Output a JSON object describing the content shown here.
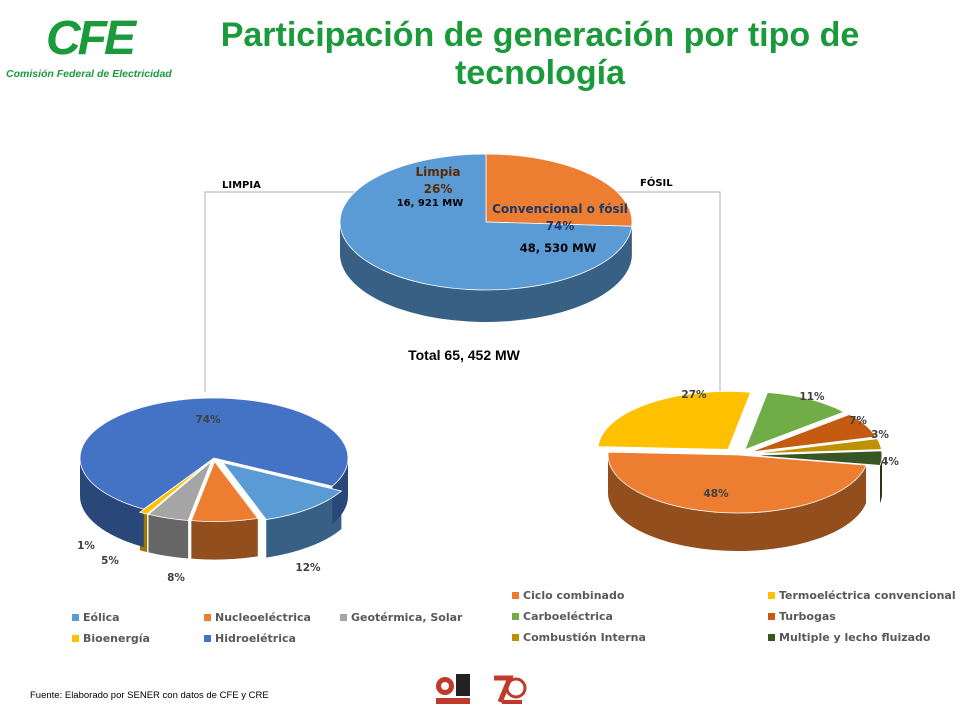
{
  "header": {
    "logo_text": "CFE",
    "logo_subtitle": "Comisión Federal de Electricidad",
    "title": "Participación de generación por tipo de tecnología"
  },
  "labels": {
    "left_branch": "LIMPIA",
    "right_branch": "FÓSIL",
    "total": "Total 65, 452 MW",
    "source": "Fuente: Elaborado por SENER con datos de CFE y CRE"
  },
  "colors": {
    "brand_green": "#1a9a3a"
  },
  "chart_data": [
    {
      "type": "pie",
      "categories": [
        "Limpia",
        "Convencional o fósil"
      ],
      "values": [
        26,
        74
      ],
      "unit": "%",
      "mw": [
        "16, 921 MW",
        "48, 530 MW"
      ],
      "colors": [
        "#ED7D31",
        "#5B9BD5"
      ],
      "legend": "none"
    },
    {
      "type": "pie",
      "categories": [
        "Eólica",
        "Nucleoeléctrica",
        "Geotérmica, Solar",
        "Bioenergía",
        "Hidroelétrica"
      ],
      "values": [
        12,
        8,
        5,
        1,
        74
      ],
      "unit": "%",
      "colors": [
        "#5B9BD5",
        "#ED7D31",
        "#A5A5A5",
        "#FFC000",
        "#4472C4"
      ],
      "legend": "bottom"
    },
    {
      "type": "pie",
      "categories": [
        "Ciclo combinado",
        "Termoeléctrica convencional",
        "Carboeléctrica",
        "Turbogas",
        "Combustión Interna",
        "Multiple y lecho fluizado"
      ],
      "values": [
        48,
        27,
        11,
        7,
        3,
        4
      ],
      "unit": "%",
      "colors": [
        "#ED7D31",
        "#FFC000",
        "#70AD47",
        "#C55A11",
        "#BF9000",
        "#375623"
      ],
      "legend": "bottom"
    }
  ]
}
